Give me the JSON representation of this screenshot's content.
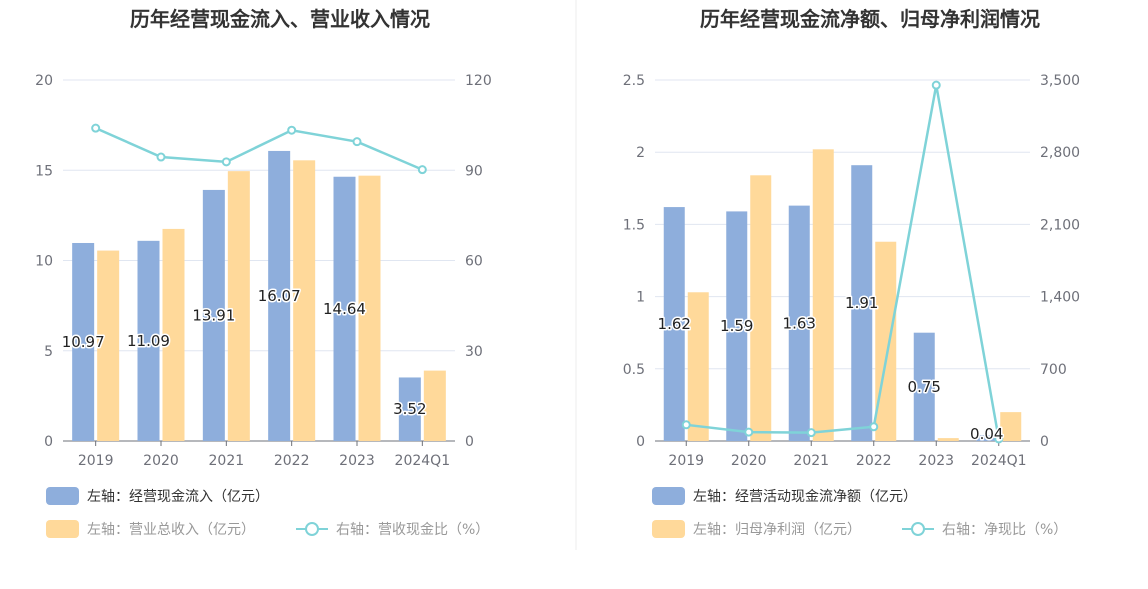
{
  "chart_data": [
    {
      "type": "bar",
      "title": "历年经营现金流入、营业收入情况",
      "categories": [
        "2019",
        "2020",
        "2021",
        "2022",
        "2023",
        "2024Q1"
      ],
      "left_axis": {
        "min": 0,
        "max": 20,
        "ticks": [
          "0",
          "5",
          "10",
          "15",
          "20"
        ]
      },
      "right_axis": {
        "min": 0,
        "max": 120,
        "ticks": [
          "0",
          "30",
          "60",
          "90",
          "120"
        ]
      },
      "series": [
        {
          "name": "左轴：经营现金流入（亿元）",
          "kind": "bar",
          "axis": "left",
          "color": "#8eaedc",
          "values": [
            10.97,
            11.09,
            13.91,
            16.07,
            14.64,
            3.52
          ],
          "labels": [
            "10.97",
            "11.09",
            "13.91",
            "16.07",
            "14.64",
            "3.52"
          ]
        },
        {
          "name": "左轴：营业总收入（亿元）",
          "kind": "bar",
          "axis": "left",
          "color": "#ffd99a",
          "values": [
            10.55,
            11.75,
            14.95,
            15.55,
            14.7,
            3.9
          ]
        },
        {
          "name": "右轴：营收现金比（%）",
          "kind": "line",
          "axis": "right",
          "color": "#7fd3d8",
          "values": [
            104,
            94.4,
            92.8,
            103.3,
            99.5,
            90.2
          ]
        }
      ],
      "legend_position": "bottom-left",
      "grid": true
    },
    {
      "type": "bar",
      "title": "历年经营现金流净额、归母净利润情况",
      "categories": [
        "2019",
        "2020",
        "2021",
        "2022",
        "2023",
        "2024Q1"
      ],
      "left_axis": {
        "min": 0,
        "max": 2.5,
        "ticks": [
          "0",
          "0.5",
          "1",
          "1.5",
          "2",
          "2.5"
        ]
      },
      "right_axis": {
        "min": 0,
        "max": 3500,
        "ticks": [
          "0",
          "700",
          "1,400",
          "2,100",
          "2,800",
          "3,500"
        ]
      },
      "series": [
        {
          "name": "左轴：经营活动现金流净额（亿元）",
          "kind": "bar",
          "axis": "left",
          "color": "#8eaedc",
          "values": [
            1.62,
            1.59,
            1.63,
            1.91,
            0.75,
            0.04
          ],
          "labels": [
            "1.62",
            "1.59",
            "1.63",
            "1.91",
            "0.75",
            "0.04"
          ]
        },
        {
          "name": "左轴：归母净利润（亿元）",
          "kind": "bar",
          "axis": "left",
          "color": "#ffd99a",
          "values": [
            1.03,
            1.84,
            2.02,
            1.38,
            0.02,
            0.2
          ]
        },
        {
          "name": "右轴：净现比（%）",
          "kind": "line",
          "axis": "right",
          "color": "#7fd3d8",
          "values": [
            157,
            86,
            81,
            138,
            3450,
            20
          ]
        }
      ],
      "legend_position": "bottom-left",
      "grid": true
    }
  ]
}
